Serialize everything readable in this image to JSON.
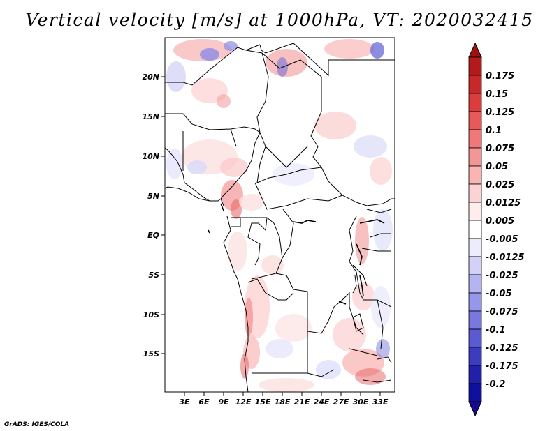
{
  "title": "Vertical velocity [m/s] at 1000hPa, VT: 2020032415",
  "footer": "GrADS: IGES/COLA",
  "lat_labels": [
    "20N",
    "15N",
    "10N",
    "5N",
    "EQ",
    "5S",
    "10S",
    "15S"
  ],
  "lon_labels": [
    "3E",
    "6E",
    "9E",
    "12E",
    "15E",
    "18E",
    "21E",
    "24E",
    "27E",
    "30E",
    "33E"
  ],
  "colorbar": {
    "labels": [
      "0.175",
      "0.15",
      "0.125",
      "0.1",
      "0.075",
      "0.05",
      "0.025",
      "0.0125",
      "0.005",
      "-0.005",
      "-0.0125",
      "-0.025",
      "-0.05",
      "-0.075",
      "-0.1",
      "-0.125",
      "-0.175",
      "-0.2"
    ],
    "colors": [
      "#b41a1a",
      "#c82828",
      "#dc3c3c",
      "#e85a5a",
      "#f07878",
      "#f59696",
      "#fab4b4",
      "#fcd2d2",
      "#ffecec",
      "#ffffff",
      "#ececfc",
      "#d2d2f8",
      "#b4b4f2",
      "#9696ea",
      "#7878e0",
      "#5a5ad2",
      "#3c3cc0",
      "#2020aa",
      "#1010a0"
    ],
    "tip_top_color": "#a01010",
    "tip_bottom_color": "#180890"
  }
}
